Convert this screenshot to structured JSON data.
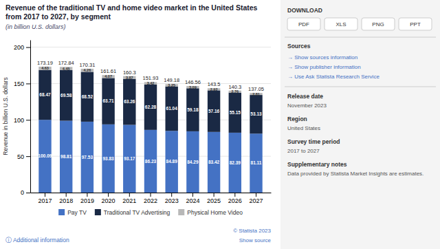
{
  "chart_data": {
    "type": "bar",
    "stacked": true,
    "title": "Revenue of the traditional TV and home video market in the United States from 2017 to 2027, by segment",
    "subtitle": "(in billion U.S. dollars)",
    "ylabel": "Revenue in billion U.S. dollars",
    "categories": [
      "2017",
      "2018",
      "2019",
      "2020",
      "2021",
      "2022",
      "2023",
      "2024",
      "2025",
      "2026",
      "2027"
    ],
    "series": [
      {
        "name": "Pay TV",
        "color": "#4472c4",
        "values": [
          100.09,
          98.81,
          97.53,
          93.83,
          93.17,
          86.23,
          84.89,
          84.29,
          83.42,
          82.39,
          81.11
        ]
      },
      {
        "name": "Traditional TV Advertising",
        "color": "#1a2944",
        "values": [
          68.47,
          69.58,
          68.52,
          63.71,
          63.26,
          62.28,
          61.04,
          59.18,
          57.16,
          55.15,
          53.13
        ]
      },
      {
        "name": "Physical Home Video",
        "color": "#b8b8b8",
        "values": [
          4.63,
          4.45,
          4.26,
          4.07,
          3.87,
          3.42,
          3.25,
          3.09,
          2.92,
          2.76,
          2.81
        ]
      }
    ],
    "totals": [
      173.19,
      172.84,
      170.31,
      161.61,
      160.3,
      151.93,
      149.18,
      146.56,
      143.5,
      140.3,
      137.05
    ],
    "data_labels": true,
    "ylim": [
      0,
      210
    ],
    "yticks": [
      0,
      50,
      100,
      150,
      200
    ],
    "grid": true,
    "legend": "bottom",
    "annotations": [
      "ⓘ Additional information",
      "© Statista 2023",
      "Show source",
      "DOWNLOAD",
      "PDF",
      "XLS",
      "PNG",
      "PPT",
      "Sources",
      "→ Show sources information",
      "→ Show publisher information",
      "→ Use Ask Statista Research Service",
      "Release date",
      "November 2023",
      "Region",
      "United States",
      "Survey time period",
      "2017 to 2027",
      "Supplementary notes",
      "Data provided by Statista Market Insights are estimates."
    ]
  }
}
